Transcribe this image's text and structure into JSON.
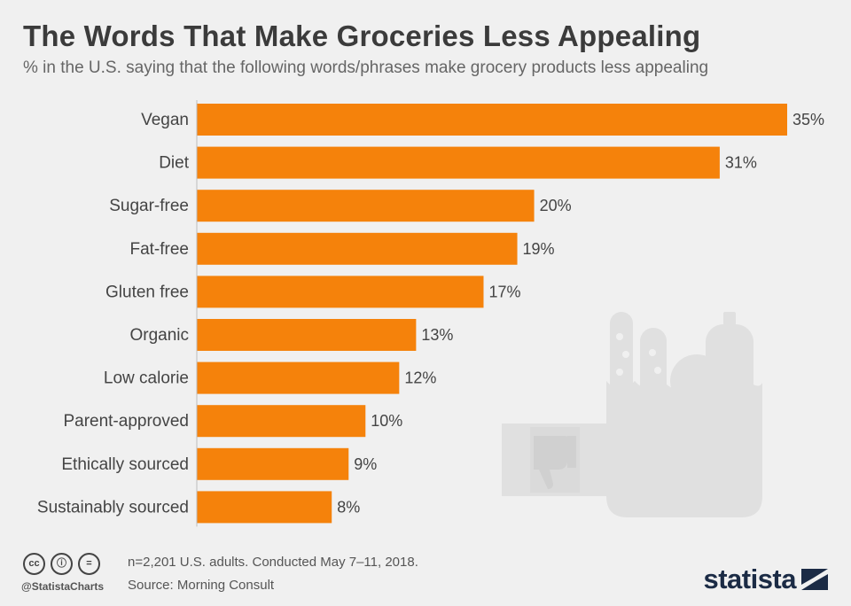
{
  "title": "The Words That Make Groceries Less Appealing",
  "subtitle": "% in the U.S. saying that the following words/phrases make grocery products less appealing",
  "colors": {
    "bar": "#f5820b",
    "background": "#f0f0f0",
    "brand": "#1b2b45"
  },
  "chart_data": {
    "type": "bar",
    "orientation": "horizontal",
    "categories": [
      "Vegan",
      "Diet",
      "Sugar-free",
      "Fat-free",
      "Gluten free",
      "Organic",
      "Low calorie",
      "Parent-approved",
      "Ethically sourced",
      "Sustainably sourced"
    ],
    "values": [
      35,
      31,
      20,
      19,
      17,
      13,
      12,
      10,
      9,
      8
    ],
    "value_labels": [
      "35%",
      "31%",
      "20%",
      "19%",
      "17%",
      "13%",
      "12%",
      "10%",
      "9%",
      "8%"
    ],
    "xlim": [
      0,
      35
    ],
    "grid": false,
    "legend": "none"
  },
  "footer": {
    "note": "n=2,201 U.S. adults. Conducted May 7–11, 2018.",
    "source": "Source: Morning Consult",
    "handle": "@StatistaCharts",
    "license_icons": [
      "cc",
      "by",
      "nd"
    ],
    "license_glyphs": [
      "cc",
      "ⓘ",
      "="
    ],
    "brand": "statista"
  },
  "illustration": {
    "icon": "grocery-bag-icon",
    "label_icon": "thumbs-down-icon"
  }
}
